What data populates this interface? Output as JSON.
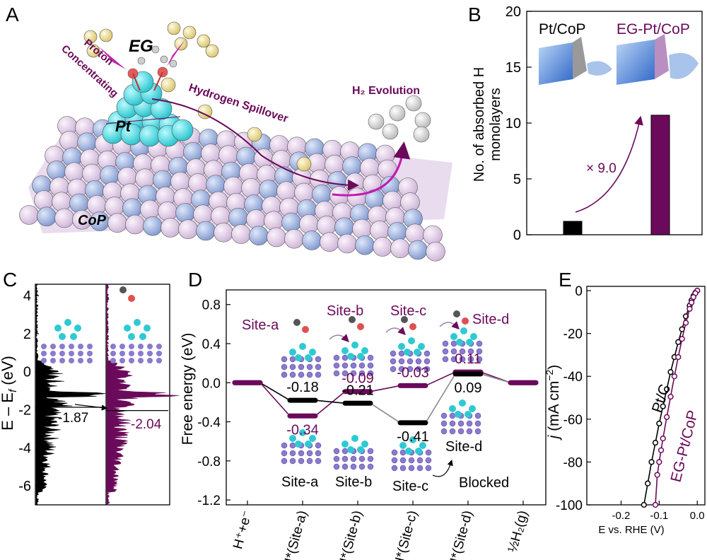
{
  "colors": {
    "black": "#000000",
    "purple": "#6b0a5a",
    "gray": "#9a9a9a",
    "pink": "#e7d3ec",
    "blue": "#9fb4e2",
    "cyan": "#4fd6dc"
  },
  "panel_labels": {
    "a": "A",
    "b": "B",
    "c": "C",
    "d": "D",
    "e": "E"
  },
  "panel_a": {
    "eg": "EG",
    "proton_line1": "Proton",
    "proton_line2": "Concentrating",
    "pt": "Pt",
    "spillover": "Hydrogen Spillover",
    "h2_evolution": "H₂ Evolution",
    "cop": "CoP"
  },
  "chart_data": [
    {
      "id": "B",
      "type": "bar",
      "categories": [
        "Pt/CoP",
        "EG-Pt/CoP"
      ],
      "values": [
        1.2,
        10.7
      ],
      "bar_colors": [
        "#000000",
        "#6b0a5a"
      ],
      "ylabel_line1": "No. of absorbed H",
      "ylabel_line2": "monolayers",
      "ylim": [
        0,
        20
      ],
      "yticks": [
        "0",
        "5",
        "10",
        "15",
        "20"
      ],
      "ytick_values": [
        0,
        5,
        10,
        15,
        20
      ],
      "legend": [
        "Pt/CoP",
        "EG-Pt/CoP"
      ],
      "annotation": "× 9.0"
    },
    {
      "id": "C",
      "type": "area",
      "ylabel": "E – E",
      "ylabel_sub": "f",
      "ylabel_unit": " (eV)",
      "ylim": [
        -7,
        4.6
      ],
      "yticks": [
        "4",
        "2",
        "0",
        "-2",
        "-4",
        "-6"
      ],
      "ytick_values": [
        4,
        2,
        0,
        -2,
        -4,
        -6
      ],
      "series": [
        {
          "name": "Pt/CoP",
          "color": "#000000",
          "dband_center": -1.87,
          "label": "-1.87"
        },
        {
          "name": "EG-Pt/CoP",
          "color": "#6b0a5a",
          "dband_center": -2.04,
          "label": "-2.04"
        }
      ]
    },
    {
      "id": "D",
      "type": "line",
      "ylabel": "Free energy (eV)",
      "ylim": [
        -1.25,
        0.95
      ],
      "yticks": [
        "0.8",
        "0.4",
        "0.0",
        "-0.4",
        "-0.8",
        "-1.2"
      ],
      "ytick_values": [
        0.8,
        0.4,
        0.0,
        -0.4,
        -0.8,
        -1.2
      ],
      "categories": [
        "H⁺+e⁻",
        "H*(Site-a)",
        "H*(Site-b)",
        "H*(Site-c)",
        "H*(Site-d)",
        "½H₂(g)"
      ],
      "series": [
        {
          "name": "EG-Pt/CoP",
          "color": "#6b0a5a",
          "values": [
            0.0,
            -0.34,
            -0.09,
            -0.03,
            0.11,
            0.0
          ],
          "labels": [
            "",
            "-0.34",
            "-0.09",
            "-0.03",
            "0.11",
            ""
          ]
        },
        {
          "name": "Pt/CoP",
          "color": "#000000",
          "values": [
            0.0,
            -0.18,
            -0.21,
            -0.41,
            0.09,
            0.0
          ],
          "labels": [
            "",
            "-0.18",
            "-0.21",
            "-0.41",
            "0.09",
            ""
          ]
        }
      ],
      "site_labels_top": [
        "Site-a",
        "Site-b",
        "Site-c",
        "Site-d"
      ],
      "site_labels_bottom": [
        "Site-a",
        "Site-b",
        "Site-c",
        "Site-d"
      ],
      "blocked": "Blocked"
    },
    {
      "id": "E",
      "type": "line",
      "xlabel": "E vs. RHE (V)",
      "ylabel_j": "j",
      "ylabel_unit": " (mA cm",
      "ylabel_exp": "−2",
      "ylabel_close": ")",
      "xlim": [
        -0.29,
        0.02
      ],
      "ylim": [
        -100,
        2
      ],
      "xticks": [
        "-0.2",
        "-0.1",
        "0.0"
      ],
      "xtick_values": [
        -0.2,
        -0.1,
        0.0
      ],
      "yticks": [
        "0",
        "-20",
        "-40",
        "-60",
        "-80",
        "-100"
      ],
      "ytick_values": [
        0,
        -20,
        -40,
        -60,
        -80,
        -100
      ],
      "series": [
        {
          "name": "Pt/C",
          "color": "#000000",
          "x": [
            0.0,
            -0.005,
            -0.01,
            -0.015,
            -0.02,
            -0.03,
            -0.04,
            -0.05,
            -0.06,
            -0.07,
            -0.08,
            -0.09,
            -0.1,
            -0.11,
            -0.12,
            -0.13,
            -0.14
          ],
          "y": [
            0,
            -1,
            -2.5,
            -4.5,
            -7,
            -12,
            -18,
            -24,
            -31,
            -38,
            -46,
            -54,
            -62,
            -71,
            -80,
            -90,
            -100
          ]
        },
        {
          "name": "EG-Pt/CoP",
          "color": "#6b0a5a",
          "x": [
            0.0,
            -0.005,
            -0.01,
            -0.015,
            -0.02,
            -0.03,
            -0.04,
            -0.05,
            -0.06,
            -0.07,
            -0.08,
            -0.09,
            -0.095,
            -0.1,
            -0.105,
            -0.11
          ],
          "y": [
            0,
            -1.2,
            -3,
            -5.5,
            -8.5,
            -15,
            -22.5,
            -31,
            -40,
            -49.5,
            -59,
            -69,
            -74.5,
            -80,
            -86,
            -100
          ]
        }
      ]
    }
  ]
}
